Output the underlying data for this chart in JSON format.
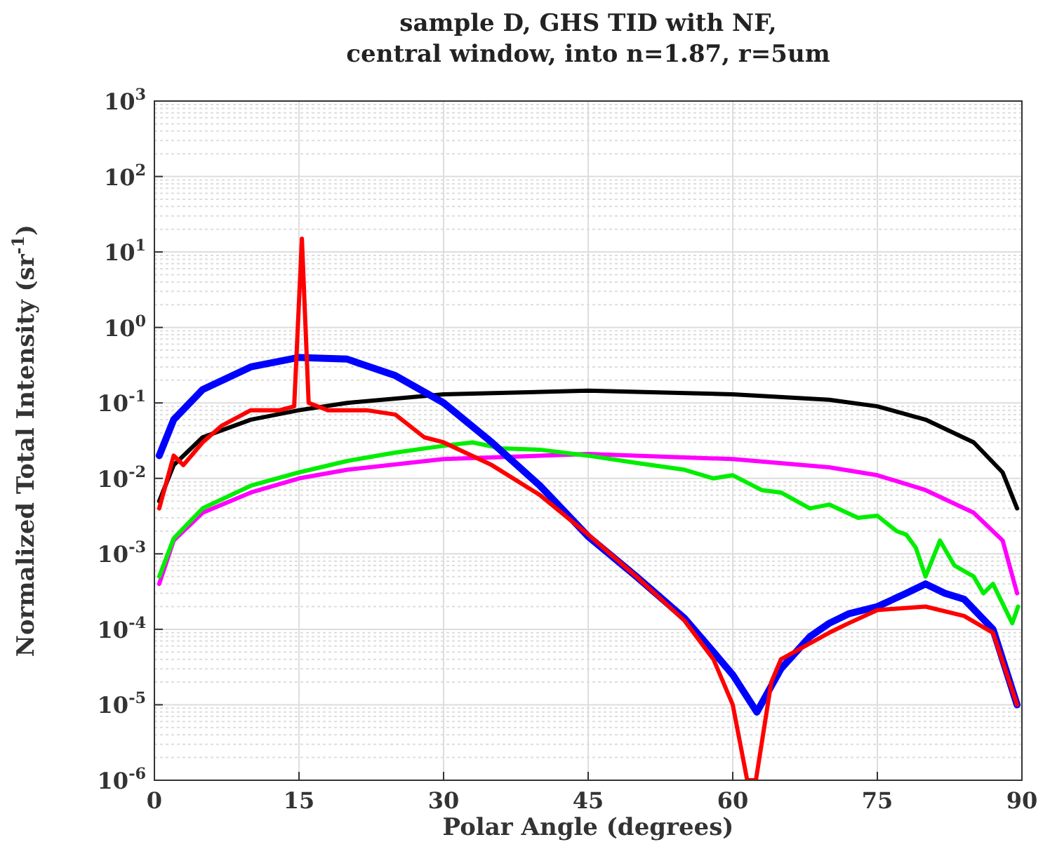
{
  "chart_data": {
    "type": "line",
    "title": "sample D, GHS TID with NF,\ncentral window, into n=1.87, r=5um",
    "xlabel": "Polar Angle (degrees)",
    "ylabel": "Normalized Total Intensity (sr$^{-1}$)",
    "log": "y",
    "grid": true,
    "marker": "none",
    "line_style": "solid",
    "xlim": [
      0,
      90
    ],
    "xticks": [
      0,
      15,
      30,
      45,
      60,
      75,
      90
    ],
    "ylim": [
      1e-06,
      1000
    ],
    "yticks": [
      {
        "value": 1e-06,
        "label": "10$^{-6}$"
      },
      {
        "value": 1e-05,
        "label": "10$^{-5}$"
      },
      {
        "value": 0.0001,
        "label": "10$^{-4}$"
      },
      {
        "value": 0.001,
        "label": "10$^{-3}$"
      },
      {
        "value": 0.01,
        "label": "10$^{-2}$"
      },
      {
        "value": 0.1,
        "label": "10$^{-1}$"
      },
      {
        "value": 1,
        "label": "10$^{0}$"
      },
      {
        "value": 10,
        "label": "10$^{1}$"
      },
      {
        "value": 100,
        "label": "10$^{2}$"
      },
      {
        "value": 1000,
        "label": "10$^{3}$"
      }
    ],
    "series": [
      {
        "color": "#000000",
        "x": [
          0.5,
          2,
          5,
          10,
          15,
          20,
          30,
          45,
          60,
          70,
          75,
          80,
          85,
          88,
          89.5
        ],
        "values": [
          0.005,
          0.015,
          0.035,
          0.06,
          0.08,
          0.1,
          0.13,
          0.145,
          0.13,
          0.11,
          0.09,
          0.06,
          0.03,
          0.012,
          0.004
        ]
      },
      {
        "color": "#ff00ff",
        "x": [
          0.5,
          2,
          5,
          10,
          15,
          20,
          30,
          45,
          60,
          70,
          75,
          80,
          85,
          88,
          89.5
        ],
        "values": [
          0.0004,
          0.0015,
          0.0035,
          0.0065,
          0.01,
          0.013,
          0.018,
          0.021,
          0.018,
          0.014,
          0.011,
          0.007,
          0.0035,
          0.0015,
          0.0003
        ]
      },
      {
        "color": "#00ee00",
        "x": [
          0.5,
          2,
          5,
          10,
          15,
          20,
          25,
          30,
          33,
          36,
          40,
          45,
          50,
          55,
          58,
          60,
          63,
          65,
          68,
          70,
          73,
          75,
          77,
          78,
          79,
          80,
          81.5,
          83,
          85,
          86,
          87,
          89,
          89.6
        ],
        "values": [
          0.0005,
          0.0016,
          0.004,
          0.008,
          0.012,
          0.017,
          0.022,
          0.027,
          0.03,
          0.025,
          0.024,
          0.02,
          0.016,
          0.013,
          0.01,
          0.011,
          0.007,
          0.0065,
          0.004,
          0.0045,
          0.003,
          0.0032,
          0.002,
          0.0018,
          0.0012,
          0.0005,
          0.0015,
          0.0007,
          0.0005,
          0.0003,
          0.0004,
          0.00012,
          0.0002
        ]
      },
      {
        "color": "#0000ff",
        "x": [
          0.5,
          2,
          5,
          10,
          15,
          20,
          25,
          30,
          35,
          40,
          45,
          50,
          55,
          58,
          60,
          62.5,
          65,
          68,
          70,
          72,
          75,
          78,
          80,
          82,
          84,
          87,
          89.5
        ],
        "values": [
          0.02,
          0.06,
          0.15,
          0.3,
          0.4,
          0.38,
          0.23,
          0.1,
          0.03,
          0.008,
          0.0017,
          0.0005,
          0.00014,
          5e-05,
          2.5e-05,
          8e-06,
          3e-05,
          8e-05,
          0.00012,
          0.00016,
          0.0002,
          0.0003,
          0.0004,
          0.0003,
          0.00025,
          0.0001,
          1e-05
        ]
      },
      {
        "color": "#ff0000",
        "x": [
          0.5,
          2,
          3,
          5,
          7,
          10,
          13,
          14.5,
          15.3,
          16,
          18,
          22,
          25,
          28,
          30,
          35,
          40,
          45,
          50,
          55,
          58,
          60,
          61.5,
          62.4,
          64,
          65,
          70,
          72,
          75,
          80,
          84,
          87,
          89.5
        ],
        "values": [
          0.004,
          0.02,
          0.015,
          0.03,
          0.05,
          0.08,
          0.08,
          0.09,
          15,
          0.1,
          0.08,
          0.08,
          0.07,
          0.035,
          0.03,
          0.015,
          0.006,
          0.0018,
          0.0005,
          0.00013,
          4e-05,
          1e-05,
          1e-06,
          1e-06,
          2e-05,
          4e-05,
          9e-05,
          0.00012,
          0.00018,
          0.0002,
          0.00015,
          9e-05,
          1e-05
        ]
      }
    ]
  }
}
